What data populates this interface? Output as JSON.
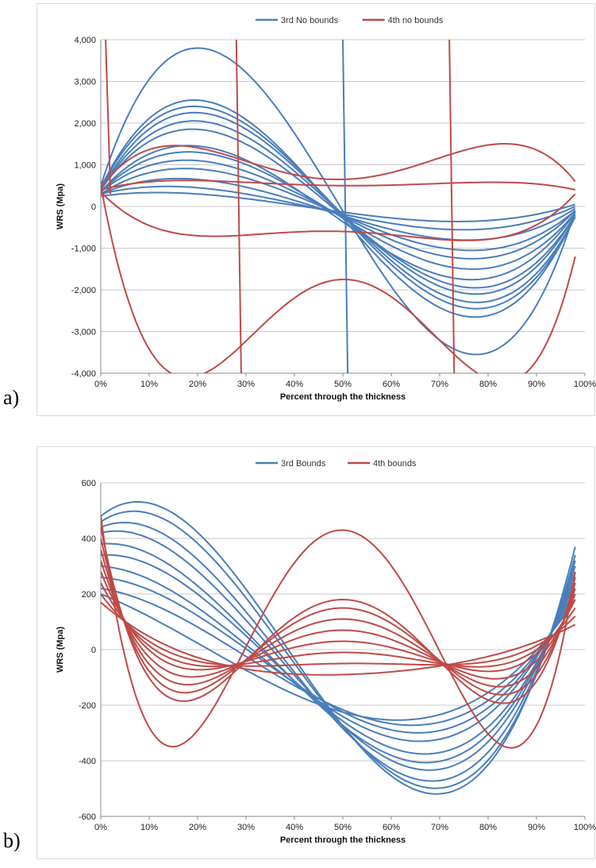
{
  "panels": [
    {
      "label": "a)"
    },
    {
      "label": "b)"
    }
  ],
  "chart_data": [
    {
      "type": "line",
      "title": "",
      "xlabel": "Percent through the thickness",
      "ylabel": "WRS (Mpa)",
      "xlim": [
        0,
        100
      ],
      "ylim": [
        -4000,
        4000
      ],
      "x_ticks": [
        "0%",
        "10%",
        "20%",
        "30%",
        "40%",
        "50%",
        "60%",
        "70%",
        "80%",
        "90%",
        "100%"
      ],
      "y_ticks": [
        "4,000",
        "3,000",
        "2,000",
        "1,000",
        "0",
        "-1,000",
        "-2,000",
        "-3,000",
        "-4,000"
      ],
      "y_tick_values": [
        4000,
        3000,
        2000,
        1000,
        0,
        -1000,
        -2000,
        -3000,
        -4000
      ],
      "grid": "horizontal",
      "legend_position": "top",
      "series": [
        {
          "name": "3rd No bounds",
          "color": "#4a7ebb",
          "order": 3,
          "x_range": [
            0,
            98
          ],
          "curves": [
            {
              "y0": 500,
              "peak": 3800,
              "peak_x": 20,
              "trough": -3550,
              "trough_x": 78,
              "y_end": -100
            },
            {
              "y0": 450,
              "peak": 2550,
              "peak_x": 20,
              "trough": -2650,
              "trough_x": 78,
              "y_end": -200
            },
            {
              "y0": 450,
              "peak": 2400,
              "peak_x": 20,
              "trough": -2450,
              "trough_x": 78,
              "y_end": -250
            },
            {
              "y0": 400,
              "peak": 2250,
              "peak_x": 20,
              "trough": -2300,
              "trough_x": 78,
              "y_end": -250
            },
            {
              "y0": 400,
              "peak": 2050,
              "peak_x": 20,
              "trough": -2100,
              "trough_x": 78,
              "y_end": -200
            },
            {
              "y0": 400,
              "peak": 1850,
              "peak_x": 20,
              "trough": -1950,
              "trough_x": 78,
              "y_end": -200
            },
            {
              "y0": 350,
              "peak": 1450,
              "peak_x": 20,
              "trough": -1750,
              "trough_x": 78,
              "y_end": -150
            },
            {
              "y0": 350,
              "peak": 1300,
              "peak_x": 20,
              "trough": -1500,
              "trough_x": 78,
              "y_end": -150
            },
            {
              "y0": 350,
              "peak": 1100,
              "peak_x": 20,
              "trough": -1250,
              "trough_x": 78,
              "y_end": -100
            },
            {
              "y0": 300,
              "peak": 900,
              "peak_x": 20,
              "trough": -1050,
              "trough_x": 78,
              "y_end": -100
            },
            {
              "y0": 300,
              "peak": 650,
              "peak_x": 20,
              "trough": -800,
              "trough_x": 78,
              "y_end": -50
            },
            {
              "y0": 300,
              "peak": 450,
              "peak_x": 20,
              "trough": -550,
              "trough_x": 78,
              "y_end": 0
            },
            {
              "y0": 250,
              "peak": 300,
              "peak_x": 20,
              "trough": -350,
              "trough_x": 78,
              "y_end": 50
            }
          ],
          "spikes": [
            {
              "x": 50,
              "from": 4000,
              "to": -4000
            }
          ]
        },
        {
          "name": "4th no bounds",
          "color": "#be4b48",
          "order": 4,
          "x_range": [
            0,
            98
          ],
          "curves": [
            {
              "y0": 500,
              "peak": -3750,
              "peak_x": 12,
              "mid": -1750,
              "mid_x": 50,
              "last": -3850,
              "last_x": 89,
              "y_end": -1200
            },
            {
              "y0": 450,
              "peak": 1400,
              "peak_x": 11,
              "mid": 650,
              "mid_x": 50,
              "last": 1400,
              "last_x": 89,
              "y_end": 600
            },
            {
              "y0": 400,
              "peak": 600,
              "peak_x": 11,
              "mid": 500,
              "mid_x": 50,
              "last": 550,
              "last_x": 89,
              "y_end": 400
            },
            {
              "y0": 350,
              "peak": -500,
              "peak_x": 11,
              "mid": -600,
              "mid_x": 50,
              "last": -500,
              "last_x": 89,
              "y_end": 300
            }
          ],
          "spikes": [
            {
              "x": 1,
              "from": 4000,
              "to": 300
            },
            {
              "x": 28,
              "from": 4000,
              "to": -4000
            },
            {
              "x": 72,
              "from": 4000,
              "to": -4000
            }
          ]
        }
      ]
    },
    {
      "type": "line",
      "title": "",
      "xlabel": "Percent through the thickness",
      "ylabel": "WRS (Mpa)",
      "xlim": [
        0,
        100
      ],
      "ylim": [
        -600,
        600
      ],
      "x_ticks": [
        "0%",
        "10%",
        "20%",
        "30%",
        "40%",
        "50%",
        "60%",
        "70%",
        "80%",
        "90%",
        "100%"
      ],
      "y_ticks": [
        "600",
        "400",
        "200",
        "0",
        "-200",
        "-400",
        "-600"
      ],
      "y_tick_values": [
        600,
        400,
        200,
        0,
        -200,
        -400,
        -600
      ],
      "grid": "horizontal",
      "legend_position": "top",
      "series": [
        {
          "name": "3rd Bounds",
          "color": "#4a7ebb",
          "order": 3,
          "x_range": [
            0,
            98
          ],
          "curves": [
            {
              "y0": 480,
              "peak": 490,
              "peak_x": 15,
              "trough": -480,
              "trough_x": 76,
              "y_end": 370
            },
            {
              "y0": 460,
              "peak": 470,
              "peak_x": 13,
              "trough": -460,
              "trough_x": 76,
              "y_end": 340
            },
            {
              "y0": 440,
              "peak": 440,
              "peak_x": 10,
              "trough": -430,
              "trough_x": 76,
              "y_end": 320
            },
            {
              "y0": 420,
              "peak": 400,
              "peak_x": 10,
              "trough": -400,
              "trough_x": 75,
              "y_end": 300
            },
            {
              "y0": 380,
              "peak": 360,
              "peak_x": 8,
              "trough": -370,
              "trough_x": 75,
              "y_end": 280
            },
            {
              "y0": 340,
              "peak": 320,
              "peak_x": 8,
              "trough": -340,
              "trough_x": 75,
              "y_end": 260
            },
            {
              "y0": 300,
              "peak": 280,
              "peak_x": 6,
              "trough": -300,
              "trough_x": 74,
              "y_end": 240
            },
            {
              "y0": 260,
              "peak": 240,
              "peak_x": 6,
              "trough": -270,
              "trough_x": 74,
              "y_end": 220
            },
            {
              "y0": 220,
              "peak": 200,
              "peak_x": 5,
              "trough": -240,
              "trough_x": 74,
              "y_end": 200
            },
            {
              "y0": 200,
              "peak": 170,
              "peak_x": 4,
              "trough": -210,
              "trough_x": 74,
              "y_end": 180
            }
          ]
        },
        {
          "name": "4th bounds",
          "color": "#be4b48",
          "order": 4,
          "x_range": [
            0,
            98
          ],
          "curves": [
            {
              "y0": 480,
              "peak": -340,
              "peak_x": 13,
              "mid": 430,
              "mid_x": 50,
              "last": -340,
              "last_x": 87,
              "y_end": 280
            },
            {
              "y0": 440,
              "peak": -160,
              "peak_x": 13,
              "mid": 180,
              "mid_x": 50,
              "last": -170,
              "last_x": 87,
              "y_end": 260
            },
            {
              "y0": 400,
              "peak": -130,
              "peak_x": 13,
              "mid": 150,
              "mid_x": 50,
              "last": -140,
              "last_x": 87,
              "y_end": 240
            },
            {
              "y0": 360,
              "peak": -100,
              "peak_x": 13,
              "mid": 110,
              "mid_x": 50,
              "last": -110,
              "last_x": 87,
              "y_end": 220
            },
            {
              "y0": 320,
              "peak": -70,
              "peak_x": 13,
              "mid": 70,
              "mid_x": 50,
              "last": -80,
              "last_x": 87,
              "y_end": 200
            },
            {
              "y0": 280,
              "peak": -40,
              "peak_x": 13,
              "mid": 30,
              "mid_x": 50,
              "last": -50,
              "last_x": 87,
              "y_end": 180
            },
            {
              "y0": 240,
              "peak": -20,
              "peak_x": 13,
              "mid": -10,
              "mid_x": 50,
              "last": -30,
              "last_x": 87,
              "y_end": 150
            },
            {
              "y0": 200,
              "peak": 0,
              "peak_x": 13,
              "mid": -50,
              "mid_x": 50,
              "last": -10,
              "last_x": 87,
              "y_end": 120
            },
            {
              "y0": 170,
              "peak": 20,
              "peak_x": 13,
              "mid": -90,
              "mid_x": 50,
              "last": 10,
              "last_x": 87,
              "y_end": 90
            }
          ]
        }
      ]
    }
  ]
}
